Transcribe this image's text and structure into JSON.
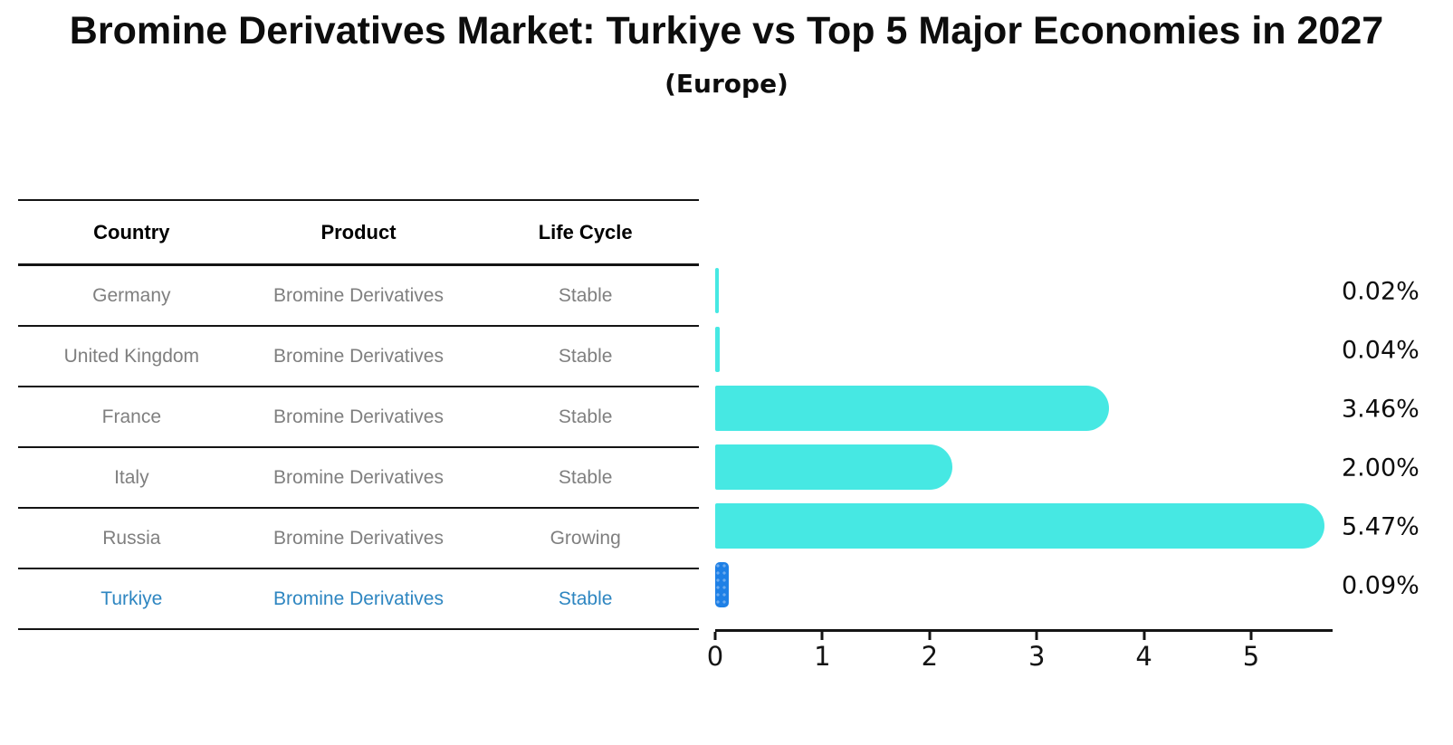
{
  "title": "Bromine Derivatives Market: Turkiye vs Top 5 Major Economies in 2027",
  "subtitle": "(Europe)",
  "table": {
    "columns": [
      "Country",
      "Product",
      "Life Cycle"
    ],
    "rows": [
      {
        "country": "Germany",
        "product": "Bromine Derivatives",
        "life_cycle": "Stable",
        "highlight": false
      },
      {
        "country": "United Kingdom",
        "product": "Bromine Derivatives",
        "life_cycle": "Stable",
        "highlight": false
      },
      {
        "country": "France",
        "product": "Bromine Derivatives",
        "life_cycle": "Stable",
        "highlight": false
      },
      {
        "country": "Italy",
        "product": "Bromine Derivatives",
        "life_cycle": "Stable",
        "highlight": false
      },
      {
        "country": "Russia",
        "product": "Bromine Derivatives",
        "life_cycle": "Growing",
        "highlight": false
      },
      {
        "country": "Turkiye",
        "product": "Bromine Derivatives",
        "life_cycle": "Stable",
        "highlight": true
      }
    ]
  },
  "chart_data": {
    "type": "bar",
    "orientation": "horizontal",
    "title": "Bromine Derivatives Market: Turkiye vs Top 5 Major Economies in 2027",
    "subtitle": "(Europe)",
    "categories": [
      "Germany",
      "United Kingdom",
      "France",
      "Italy",
      "Russia",
      "Turkiye"
    ],
    "values": [
      0.02,
      0.04,
      3.46,
      2.0,
      5.47,
      0.09
    ],
    "value_labels": [
      "0.02%",
      "0.04%",
      "3.46%",
      "2.00%",
      "5.47%",
      "0.09%"
    ],
    "x_ticks": [
      "0",
      "1",
      "2",
      "3",
      "4",
      "5"
    ],
    "xlim": [
      0,
      5.76
    ],
    "grid": false,
    "legend": false,
    "bar_color": "#46E8E3",
    "highlight_bar_color": "#1E80E6",
    "highlight_index": 5,
    "highlight_text_color": "#2E86C1"
  }
}
